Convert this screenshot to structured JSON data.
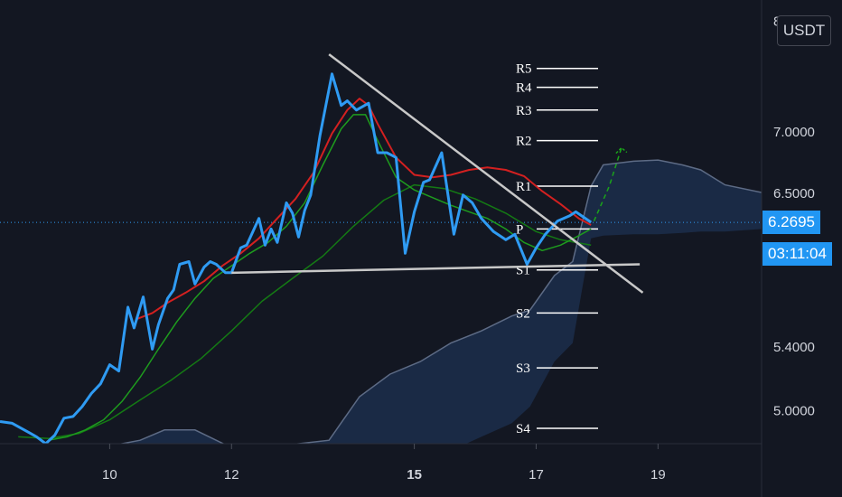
{
  "currency_label": "USDT",
  "price_badge": {
    "value": "6.2695",
    "color": "#2196f3"
  },
  "countdown_badge": {
    "value": "03:11:04",
    "color": "#2196f3"
  },
  "colors": {
    "background": "#131722",
    "price_line": "#2f9bf3",
    "red_ma": "#d32020",
    "green_ma": "#1e9c1e",
    "dark_green_ma": "#147a14",
    "trendline": "#c8c8c8",
    "cloud_fill": "#1a2a45",
    "cloud_edge": "#5d6b85",
    "pivot_line": "#ffffff",
    "projection": "#1aa31a"
  },
  "chart_data": {
    "type": "line",
    "scale": "log",
    "ylim": [
      4.8,
      8.2
    ],
    "xlim": [
      8.1,
      20.6
    ],
    "y_ticks": [
      "5.0000",
      "5.4000",
      "6.5000",
      "7.0000",
      "8"
    ],
    "y_tick_values": [
      5.0,
      5.4,
      6.5,
      7.0,
      8.0
    ],
    "x_ticks": [
      "10",
      "12",
      "15",
      "17",
      "19"
    ],
    "x_tick_values": [
      9.9,
      11.9,
      14.9,
      16.9,
      18.9
    ],
    "bold_x_ticks": [
      "15"
    ],
    "pivot_levels": [
      {
        "label": "R5",
        "value": 7.55
      },
      {
        "label": "R4",
        "value": 7.38
      },
      {
        "label": "R3",
        "value": 7.18
      },
      {
        "label": "R2",
        "value": 6.92
      },
      {
        "label": "R1",
        "value": 6.55
      },
      {
        "label": "P",
        "value": 6.22
      },
      {
        "label": "S1",
        "value": 5.92
      },
      {
        "label": "S2",
        "value": 5.62
      },
      {
        "label": "S3",
        "value": 5.26
      },
      {
        "label": "S4",
        "value": 4.89
      }
    ],
    "series": [
      {
        "role": "price",
        "x": [
          8.1,
          8.3,
          8.6,
          8.7,
          8.85,
          9.0,
          9.15,
          9.3,
          9.45,
          9.6,
          9.75,
          9.9,
          10.05,
          10.2,
          10.3,
          10.45,
          10.6,
          10.7,
          10.85,
          10.95,
          11.05,
          11.2,
          11.3,
          11.45,
          11.55,
          11.65,
          11.8,
          11.9,
          12.05,
          12.15,
          12.35,
          12.45,
          12.55,
          12.65,
          12.8,
          12.9,
          13.0,
          13.1,
          13.2,
          13.35,
          13.55,
          13.7,
          13.8,
          13.95,
          14.15,
          14.3,
          14.45,
          14.6,
          14.75,
          14.9,
          15.05,
          15.15,
          15.35,
          15.55,
          15.7,
          15.85,
          16.0,
          16.2,
          16.4,
          16.55,
          16.75,
          16.9,
          17.05,
          17.25,
          17.45,
          17.55,
          17.8
        ],
        "y": [
          4.93,
          4.92,
          4.86,
          4.84,
          4.8,
          4.85,
          4.95,
          4.96,
          5.02,
          5.1,
          5.16,
          5.28,
          5.24,
          5.66,
          5.52,
          5.73,
          5.38,
          5.54,
          5.72,
          5.78,
          5.96,
          5.98,
          5.82,
          5.94,
          5.98,
          5.96,
          5.9,
          5.9,
          6.08,
          6.1,
          6.3,
          6.1,
          6.22,
          6.12,
          6.42,
          6.34,
          6.16,
          6.36,
          6.48,
          6.96,
          7.5,
          7.22,
          7.26,
          7.18,
          7.24,
          6.82,
          6.82,
          6.78,
          6.04,
          6.35,
          6.58,
          6.6,
          6.82,
          6.18,
          6.48,
          6.42,
          6.3,
          6.2,
          6.14,
          6.18,
          5.96,
          6.08,
          6.18,
          6.28,
          6.32,
          6.35,
          6.27
        ]
      },
      {
        "role": "red_ma",
        "x": [
          10.35,
          10.6,
          10.85,
          11.15,
          11.45,
          11.75,
          12.05,
          12.35,
          12.65,
          12.95,
          13.25,
          13.55,
          13.8,
          14.0,
          14.15,
          14.3,
          14.6,
          14.9,
          15.2,
          15.5,
          15.8,
          16.1,
          16.4,
          16.7,
          17.0,
          17.3,
          17.6,
          17.8
        ],
        "y": [
          5.58,
          5.62,
          5.69,
          5.76,
          5.84,
          5.95,
          6.04,
          6.15,
          6.3,
          6.45,
          6.66,
          6.98,
          7.18,
          7.28,
          7.22,
          7.06,
          6.78,
          6.64,
          6.62,
          6.64,
          6.68,
          6.7,
          6.68,
          6.63,
          6.51,
          6.41,
          6.3,
          6.25
        ]
      },
      {
        "role": "green_ma",
        "x": [
          8.9,
          9.2,
          9.5,
          9.8,
          10.1,
          10.4,
          10.7,
          11.0,
          11.3,
          11.6,
          11.9,
          12.2,
          12.5,
          12.8,
          13.1,
          13.4,
          13.7,
          13.9,
          14.1,
          14.3,
          14.6,
          14.9,
          15.2,
          15.5,
          15.8,
          16.1,
          16.4,
          16.7,
          17.0,
          17.3,
          17.6,
          17.8
        ],
        "y": [
          4.82,
          4.84,
          4.88,
          4.94,
          5.05,
          5.2,
          5.38,
          5.56,
          5.72,
          5.86,
          5.95,
          6.04,
          6.12,
          6.24,
          6.42,
          6.72,
          7.02,
          7.14,
          7.14,
          6.92,
          6.62,
          6.52,
          6.46,
          6.4,
          6.35,
          6.3,
          6.22,
          6.12,
          6.06,
          6.1,
          6.17,
          6.22
        ]
      },
      {
        "role": "dark_green_ma",
        "x": [
          8.4,
          8.9,
          9.4,
          9.9,
          10.4,
          10.9,
          11.4,
          11.9,
          12.4,
          12.9,
          13.4,
          13.9,
          14.4,
          14.9,
          15.4,
          15.9,
          16.4,
          16.9,
          17.3,
          17.8
        ],
        "y": [
          4.84,
          4.83,
          4.86,
          4.94,
          5.06,
          5.18,
          5.32,
          5.5,
          5.7,
          5.86,
          6.02,
          6.24,
          6.44,
          6.56,
          6.53,
          6.45,
          6.34,
          6.2,
          6.14,
          6.1
        ]
      }
    ],
    "cloud": {
      "x": [
        8.1,
        9.5,
        10.4,
        10.8,
        11.3,
        12.0,
        13.5,
        14.0,
        14.5,
        15.0,
        15.5,
        16.0,
        16.5,
        16.8,
        17.2,
        17.5,
        17.8,
        18.0,
        18.5,
        18.9,
        19.3,
        19.6,
        20.0,
        20.6
      ],
      "upper": [
        4.72,
        4.76,
        4.82,
        4.88,
        4.88,
        4.76,
        4.82,
        5.08,
        5.22,
        5.3,
        5.42,
        5.5,
        5.6,
        5.64,
        5.88,
        5.98,
        6.55,
        6.72,
        6.75,
        6.76,
        6.72,
        6.68,
        6.56,
        6.5
      ],
      "lower": [
        4.62,
        4.64,
        4.66,
        4.66,
        4.66,
        4.62,
        4.62,
        4.64,
        4.66,
        4.7,
        4.76,
        4.84,
        4.92,
        5.02,
        5.3,
        5.42,
        6.15,
        6.17,
        6.18,
        6.18,
        6.19,
        6.2,
        6.2,
        6.22
      ]
    },
    "trendlines": [
      {
        "x": [
          13.5,
          18.65
        ],
        "y": [
          7.68,
          5.76
        ]
      },
      {
        "x": [
          11.9,
          18.6
        ],
        "y": [
          5.9,
          5.96
        ]
      }
    ],
    "projection": {
      "x": [
        17.85,
        18.1,
        18.3
      ],
      "y": [
        6.28,
        6.55,
        6.86
      ]
    },
    "current_price": 6.2695
  }
}
